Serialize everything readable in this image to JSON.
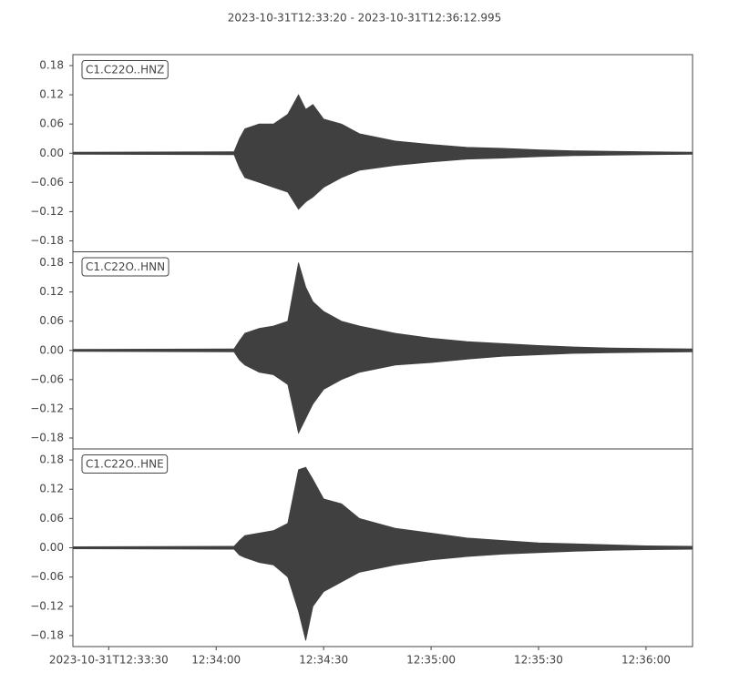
{
  "title": "2023-10-31T12:33:20  -  2023-10-31T12:36:12.995",
  "chart_data": [
    {
      "type": "waveform",
      "label": "C1.C22O..HNZ",
      "color": "#404040",
      "x": [
        0,
        45,
        46.5,
        48,
        52,
        56,
        60,
        63,
        65,
        67,
        70,
        75,
        80,
        90,
        100,
        110,
        120,
        130,
        140,
        150,
        160,
        172.995
      ],
      "values_max": [
        0.002,
        0.003,
        0.03,
        0.05,
        0.06,
        0.06,
        0.08,
        0.12,
        0.09,
        0.1,
        0.07,
        0.06,
        0.04,
        0.025,
        0.018,
        0.012,
        0.01,
        0.007,
        0.005,
        0.004,
        0.003,
        0.002
      ],
      "values_min": [
        -0.002,
        -0.003,
        -0.03,
        -0.05,
        -0.06,
        -0.07,
        -0.08,
        -0.115,
        -0.1,
        -0.09,
        -0.07,
        -0.05,
        -0.035,
        -0.025,
        -0.018,
        -0.012,
        -0.01,
        -0.007,
        -0.005,
        -0.004,
        -0.003,
        -0.002
      ],
      "xlim": [
        0,
        172.995
      ],
      "ylim": [
        -0.2025,
        0.2025
      ],
      "yticks": [
        0.18,
        0.12,
        0.06,
        {
          "value": 0,
          "label": "0.00"
        },
        {
          "value": -0.06,
          "label": "−0.06"
        },
        {
          "value": -0.12,
          "label": "−0.12"
        },
        {
          "value": -0.18,
          "label": "−0.18"
        }
      ]
    },
    {
      "type": "waveform",
      "label": "C1.C22O..HNN",
      "color": "#404040",
      "x": [
        0,
        45,
        46.5,
        48,
        52,
        56,
        60,
        63,
        65,
        67,
        70,
        75,
        80,
        90,
        100,
        110,
        120,
        130,
        140,
        150,
        160,
        172.995
      ],
      "values_max": [
        0.002,
        0.003,
        0.02,
        0.035,
        0.045,
        0.05,
        0.06,
        0.18,
        0.13,
        0.1,
        0.08,
        0.06,
        0.05,
        0.035,
        0.025,
        0.018,
        0.014,
        0.01,
        0.007,
        0.005,
        0.004,
        0.003
      ],
      "values_min": [
        -0.002,
        -0.003,
        -0.02,
        -0.03,
        -0.045,
        -0.05,
        -0.07,
        -0.17,
        -0.14,
        -0.11,
        -0.08,
        -0.06,
        -0.045,
        -0.03,
        -0.025,
        -0.018,
        -0.012,
        -0.009,
        -0.006,
        -0.005,
        -0.004,
        -0.003
      ],
      "xlim": [
        0,
        172.995
      ],
      "ylim": [
        -0.2025,
        0.2025
      ],
      "yticks": [
        0.18,
        0.12,
        0.06,
        {
          "value": 0,
          "label": "0.00"
        },
        {
          "value": -0.06,
          "label": "−0.06"
        },
        {
          "value": -0.12,
          "label": "−0.12"
        },
        {
          "value": -0.18,
          "label": "−0.18"
        }
      ]
    },
    {
      "type": "waveform",
      "label": "C1.C22O..HNE",
      "color": "#404040",
      "x": [
        0,
        45,
        46.5,
        48,
        52,
        56,
        60,
        63,
        65,
        67,
        70,
        75,
        80,
        90,
        100,
        110,
        120,
        130,
        140,
        150,
        160,
        172.995
      ],
      "values_max": [
        0.002,
        0.003,
        0.015,
        0.025,
        0.03,
        0.035,
        0.05,
        0.16,
        0.165,
        0.14,
        0.1,
        0.09,
        0.06,
        0.04,
        0.03,
        0.02,
        0.015,
        0.01,
        0.008,
        0.006,
        0.004,
        0.003
      ],
      "values_min": [
        -0.002,
        -0.003,
        -0.015,
        -0.02,
        -0.03,
        -0.035,
        -0.06,
        -0.13,
        -0.19,
        -0.12,
        -0.09,
        -0.07,
        -0.05,
        -0.035,
        -0.025,
        -0.018,
        -0.013,
        -0.01,
        -0.007,
        -0.005,
        -0.004,
        -0.003
      ],
      "xlim": [
        0,
        172.995
      ],
      "ylim": [
        -0.2025,
        0.2025
      ],
      "yticks": [
        0.18,
        0.12,
        0.06,
        {
          "value": 0,
          "label": "0.00"
        },
        {
          "value": -0.06,
          "label": "−0.06"
        },
        {
          "value": -0.12,
          "label": "−0.12"
        },
        {
          "value": -0.18,
          "label": "−0.18"
        }
      ],
      "xticks": [
        {
          "value": 10,
          "label": "2023-10-31T12:33:30"
        },
        {
          "value": 40,
          "label": "12:34:00"
        },
        {
          "value": 70,
          "label": "12:34:30"
        },
        {
          "value": 100,
          "label": "12:35:00"
        },
        {
          "value": 130,
          "label": "12:35:30"
        },
        {
          "value": 160,
          "label": "12:36:00"
        }
      ]
    }
  ]
}
